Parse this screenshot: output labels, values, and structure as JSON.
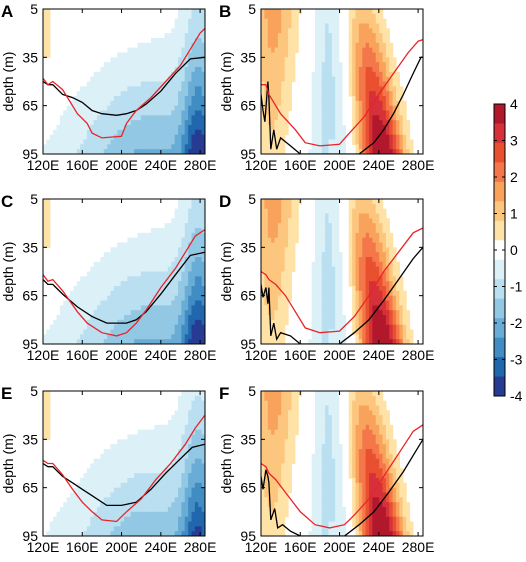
{
  "chart_data": {
    "type": "heatmap",
    "colorbar": {
      "ticks": [
        "4",
        "3",
        "2",
        "1",
        "0",
        "-1",
        "-2",
        "-3",
        "-4"
      ],
      "levels": [
        {
          "min": 3.5,
          "max": 4,
          "color": "#b2182b"
        },
        {
          "min": 3,
          "max": 3.5,
          "color": "#d6303a"
        },
        {
          "min": 2.5,
          "max": 3,
          "color": "#e8502f"
        },
        {
          "min": 2,
          "max": 2.5,
          "color": "#f4774a"
        },
        {
          "min": 1.5,
          "max": 2,
          "color": "#f9a25c"
        },
        {
          "min": 1,
          "max": 1.5,
          "color": "#fcc67e"
        },
        {
          "min": 0.5,
          "max": 1,
          "color": "#fee2a6"
        },
        {
          "min": -0.5,
          "max": 0.5,
          "color": "#ffffff"
        },
        {
          "min": -1,
          "max": -0.5,
          "color": "#dcf0f7"
        },
        {
          "min": -1.5,
          "max": -1,
          "color": "#b9dff0"
        },
        {
          "min": -2,
          "max": -1.5,
          "color": "#92c8e4"
        },
        {
          "min": -2.5,
          "max": -2,
          "color": "#69acd6"
        },
        {
          "min": -3,
          "max": -2.5,
          "color": "#418dc3"
        },
        {
          "min": -3.5,
          "max": -3,
          "color": "#2167ad"
        },
        {
          "min": -4,
          "max": -3.5,
          "color": "#263c93"
        }
      ]
    },
    "x_ticks": [
      "120E",
      "160E",
      "200E",
      "240E",
      "280E"
    ],
    "y_ticks": [
      "5",
      "35",
      "65",
      "95"
    ],
    "xlim": [
      120,
      285
    ],
    "ylim": [
      95,
      5
    ],
    "ylabel": "depth (m)",
    "line_colors": {
      "black": "#000000",
      "red": "#e8242a"
    },
    "panels": [
      {
        "letter": "A",
        "sign": "negative",
        "black_line": [
          [
            120,
            50
          ],
          [
            125,
            52
          ],
          [
            130,
            52
          ],
          [
            140,
            58
          ],
          [
            150,
            60
          ],
          [
            160,
            63
          ],
          [
            170,
            68
          ],
          [
            180,
            70
          ],
          [
            195,
            71
          ],
          [
            205,
            70
          ],
          [
            215,
            68
          ],
          [
            225,
            64
          ],
          [
            240,
            56
          ],
          [
            255,
            45
          ],
          [
            270,
            36
          ],
          [
            285,
            35
          ]
        ],
        "red_line": [
          [
            120,
            48
          ],
          [
            125,
            52
          ],
          [
            130,
            50
          ],
          [
            140,
            55
          ],
          [
            150,
            65
          ],
          [
            155,
            70
          ],
          [
            160,
            73
          ],
          [
            165,
            76
          ],
          [
            170,
            82
          ],
          [
            180,
            85
          ],
          [
            200,
            84
          ],
          [
            205,
            76
          ],
          [
            215,
            68
          ],
          [
            230,
            60
          ],
          [
            245,
            50
          ],
          [
            260,
            40
          ],
          [
            270,
            30
          ],
          [
            280,
            20
          ],
          [
            285,
            17
          ]
        ]
      },
      {
        "letter": "B",
        "sign": "positive",
        "black_line": [
          [
            120,
            58
          ],
          [
            122,
            68
          ],
          [
            124,
            75
          ],
          [
            127,
            50
          ],
          [
            128,
            60
          ],
          [
            130,
            92
          ],
          [
            133,
            80
          ],
          [
            136,
            92
          ],
          [
            140,
            85
          ],
          [
            150,
            90
          ],
          [
            160,
            95
          ],
          [
            220,
            95
          ],
          [
            235,
            88
          ],
          [
            245,
            80
          ],
          [
            255,
            70
          ],
          [
            265,
            58
          ],
          [
            275,
            45
          ],
          [
            283,
            35
          ],
          [
            285,
            35
          ]
        ],
        "red_line": [
          [
            120,
            52
          ],
          [
            125,
            52
          ],
          [
            128,
            58
          ],
          [
            130,
            60
          ],
          [
            140,
            70
          ],
          [
            155,
            80
          ],
          [
            165,
            88
          ],
          [
            180,
            90
          ],
          [
            200,
            89
          ],
          [
            210,
            82
          ],
          [
            225,
            72
          ],
          [
            240,
            58
          ],
          [
            255,
            45
          ],
          [
            270,
            32
          ],
          [
            280,
            25
          ],
          [
            285,
            24
          ]
        ]
      },
      {
        "letter": "C",
        "sign": "negative",
        "black_line": [
          [
            120,
            55
          ],
          [
            125,
            58
          ],
          [
            130,
            58
          ],
          [
            140,
            64
          ],
          [
            155,
            72
          ],
          [
            170,
            78
          ],
          [
            185,
            82
          ],
          [
            205,
            82
          ],
          [
            215,
            80
          ],
          [
            225,
            75
          ],
          [
            240,
            64
          ],
          [
            255,
            52
          ],
          [
            270,
            40
          ],
          [
            285,
            38
          ]
        ],
        "red_line": [
          [
            120,
            52
          ],
          [
            125,
            56
          ],
          [
            130,
            55
          ],
          [
            140,
            62
          ],
          [
            155,
            75
          ],
          [
            165,
            82
          ],
          [
            180,
            88
          ],
          [
            195,
            90
          ],
          [
            205,
            88
          ],
          [
            215,
            82
          ],
          [
            225,
            74
          ],
          [
            240,
            60
          ],
          [
            255,
            48
          ],
          [
            265,
            38
          ],
          [
            275,
            28
          ],
          [
            285,
            24
          ]
        ]
      },
      {
        "letter": "D",
        "sign": "positive",
        "black_line": [
          [
            120,
            58
          ],
          [
            122,
            66
          ],
          [
            125,
            60
          ],
          [
            127,
            70
          ],
          [
            128,
            60
          ],
          [
            130,
            90
          ],
          [
            133,
            82
          ],
          [
            136,
            92
          ],
          [
            140,
            88
          ],
          [
            150,
            90
          ],
          [
            160,
            95
          ],
          [
            200,
            95
          ],
          [
            215,
            88
          ],
          [
            230,
            80
          ],
          [
            245,
            68
          ],
          [
            260,
            55
          ],
          [
            275,
            42
          ],
          [
            285,
            35
          ]
        ],
        "red_line": [
          [
            120,
            50
          ],
          [
            125,
            52
          ],
          [
            128,
            55
          ],
          [
            135,
            58
          ],
          [
            145,
            65
          ],
          [
            155,
            75
          ],
          [
            165,
            85
          ],
          [
            180,
            88
          ],
          [
            200,
            87
          ],
          [
            215,
            78
          ],
          [
            230,
            65
          ],
          [
            245,
            50
          ],
          [
            260,
            38
          ],
          [
            275,
            26
          ],
          [
            285,
            23
          ]
        ]
      },
      {
        "letter": "E",
        "sign": "negative",
        "black_line": [
          [
            120,
            50
          ],
          [
            125,
            52
          ],
          [
            130,
            52
          ],
          [
            140,
            58
          ],
          [
            150,
            62
          ],
          [
            160,
            66
          ],
          [
            170,
            70
          ],
          [
            185,
            76
          ],
          [
            200,
            76
          ],
          [
            215,
            74
          ],
          [
            230,
            66
          ],
          [
            245,
            56
          ],
          [
            260,
            47
          ],
          [
            272,
            40
          ],
          [
            285,
            38
          ]
        ],
        "red_line": [
          [
            120,
            48
          ],
          [
            125,
            50
          ],
          [
            130,
            50
          ],
          [
            140,
            57
          ],
          [
            150,
            66
          ],
          [
            160,
            74
          ],
          [
            170,
            80
          ],
          [
            180,
            85
          ],
          [
            195,
            86
          ],
          [
            205,
            80
          ],
          [
            220,
            72
          ],
          [
            235,
            60
          ],
          [
            250,
            50
          ],
          [
            265,
            38
          ],
          [
            275,
            28
          ],
          [
            285,
            20
          ]
        ]
      },
      {
        "letter": "F",
        "sign": "positive",
        "black_line": [
          [
            120,
            58
          ],
          [
            122,
            66
          ],
          [
            125,
            54
          ],
          [
            127,
            58
          ],
          [
            128,
            62
          ],
          [
            130,
            85
          ],
          [
            134,
            78
          ],
          [
            137,
            90
          ],
          [
            142,
            88
          ],
          [
            150,
            92
          ],
          [
            160,
            95
          ],
          [
            205,
            95
          ],
          [
            220,
            88
          ],
          [
            235,
            80
          ],
          [
            250,
            68
          ],
          [
            265,
            55
          ],
          [
            275,
            45
          ],
          [
            285,
            35
          ]
        ],
        "red_line": [
          [
            120,
            50
          ],
          [
            125,
            52
          ],
          [
            128,
            56
          ],
          [
            135,
            60
          ],
          [
            145,
            68
          ],
          [
            160,
            80
          ],
          [
            175,
            88
          ],
          [
            190,
            90
          ],
          [
            205,
            88
          ],
          [
            215,
            82
          ],
          [
            230,
            72
          ],
          [
            245,
            58
          ],
          [
            260,
            44
          ],
          [
            275,
            30
          ],
          [
            285,
            26
          ]
        ]
      }
    ]
  }
}
